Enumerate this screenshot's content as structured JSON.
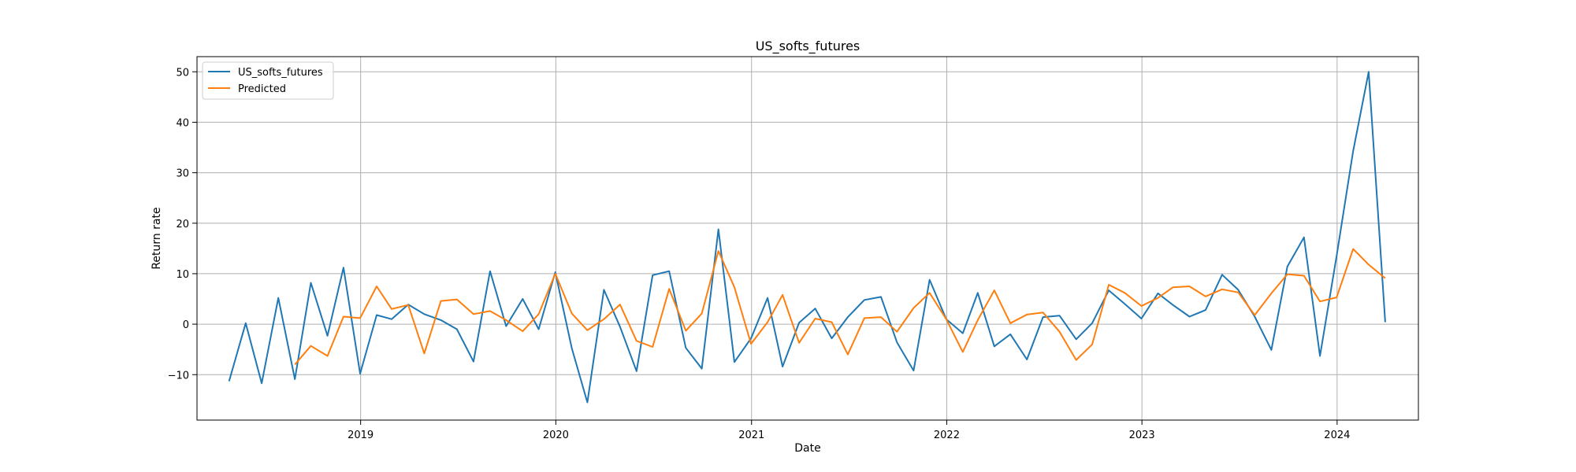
{
  "chart_data": {
    "type": "line",
    "title": "US_softs_futures",
    "xlabel": "Date",
    "ylabel": "Return rate",
    "xlim": [
      "2018-03-01",
      "2024-06-01"
    ],
    "ylim": [
      -19,
      53
    ],
    "x_ticks": [
      {
        "date": "2019-01-01",
        "label": "2019"
      },
      {
        "date": "2020-01-01",
        "label": "2020"
      },
      {
        "date": "2021-01-01",
        "label": "2021"
      },
      {
        "date": "2022-01-01",
        "label": "2022"
      },
      {
        "date": "2023-01-01",
        "label": "2023"
      },
      {
        "date": "2024-01-01",
        "label": "2024"
      }
    ],
    "y_ticks": [
      {
        "value": -10,
        "label": "−10"
      },
      {
        "value": 0,
        "label": "0"
      },
      {
        "value": 10,
        "label": "10"
      },
      {
        "value": 20,
        "label": "20"
      },
      {
        "value": 30,
        "label": "30"
      },
      {
        "value": 40,
        "label": "40"
      },
      {
        "value": 50,
        "label": "50"
      }
    ],
    "grid": true,
    "legend_position": "top-left",
    "series": [
      {
        "name": "US_softs_futures",
        "color": "#1f77b4",
        "x": [
          "2018-04-30",
          "2018-05-31",
          "2018-06-30",
          "2018-07-31",
          "2018-08-31",
          "2018-09-30",
          "2018-10-31",
          "2018-11-30",
          "2018-12-31",
          "2019-01-31",
          "2019-02-28",
          "2019-03-31",
          "2019-04-30",
          "2019-05-31",
          "2019-06-30",
          "2019-07-31",
          "2019-08-31",
          "2019-09-30",
          "2019-10-31",
          "2019-11-30",
          "2019-12-31",
          "2020-01-31",
          "2020-02-29",
          "2020-03-31",
          "2020-04-30",
          "2020-05-31",
          "2020-06-30",
          "2020-07-31",
          "2020-08-31",
          "2020-09-30",
          "2020-10-31",
          "2020-11-30",
          "2020-12-31",
          "2021-01-31",
          "2021-02-28",
          "2021-03-31",
          "2021-04-30",
          "2021-05-31",
          "2021-06-30",
          "2021-07-31",
          "2021-08-31",
          "2021-09-30",
          "2021-10-31",
          "2021-11-30",
          "2021-12-31",
          "2022-01-31",
          "2022-02-28",
          "2022-03-31",
          "2022-04-30",
          "2022-05-31",
          "2022-06-30",
          "2022-07-31",
          "2022-08-31",
          "2022-09-30",
          "2022-10-31",
          "2022-11-30",
          "2022-12-31",
          "2023-01-31",
          "2023-02-28",
          "2023-03-31",
          "2023-04-30",
          "2023-05-31",
          "2023-06-30",
          "2023-07-31",
          "2023-08-31",
          "2023-09-30",
          "2023-10-31",
          "2023-11-30",
          "2023-12-31",
          "2024-01-31",
          "2024-02-29",
          "2024-03-31"
        ],
        "y": [
          -11.3,
          0.2,
          -11.7,
          5.2,
          -10.9,
          8.2,
          -2.3,
          11.2,
          -9.8,
          1.8,
          1.0,
          3.9,
          2.0,
          0.8,
          -1.0,
          -7.4,
          10.5,
          -0.4,
          5.0,
          -1.0,
          10.3,
          -4.8,
          -15.5,
          6.8,
          -0.5,
          -9.3,
          9.7,
          10.5,
          -4.7,
          -8.8,
          18.8,
          -7.5,
          -2.8,
          5.2,
          -8.4,
          0.3,
          3.1,
          -2.8,
          1.4,
          4.8,
          5.4,
          -3.6,
          -9.2,
          8.8,
          1.0,
          -1.8,
          6.2,
          -4.4,
          -2.0,
          -7.0,
          1.4,
          1.7,
          -3.0,
          0.2,
          6.7,
          4.0,
          1.1,
          6.1,
          3.8,
          1.5,
          2.8,
          9.8,
          6.8,
          1.5,
          -5.1,
          11.4,
          17.2,
          -6.3,
          13.5,
          34.3,
          50.0,
          0.4
        ]
      },
      {
        "name": "Predicted",
        "color": "#ff7f0e",
        "x": [
          "2018-08-31",
          "2018-09-30",
          "2018-10-31",
          "2018-11-30",
          "2018-12-31",
          "2019-01-31",
          "2019-02-28",
          "2019-03-31",
          "2019-04-30",
          "2019-05-31",
          "2019-06-30",
          "2019-07-31",
          "2019-08-31",
          "2019-09-30",
          "2019-10-31",
          "2019-11-30",
          "2019-12-31",
          "2020-01-31",
          "2020-02-29",
          "2020-03-31",
          "2020-04-30",
          "2020-05-31",
          "2020-06-30",
          "2020-07-31",
          "2020-08-31",
          "2020-09-30",
          "2020-10-31",
          "2020-11-30",
          "2020-12-31",
          "2021-01-31",
          "2021-02-28",
          "2021-03-31",
          "2021-04-30",
          "2021-05-31",
          "2021-06-30",
          "2021-07-31",
          "2021-08-31",
          "2021-09-30",
          "2021-10-31",
          "2021-11-30",
          "2021-12-31",
          "2022-01-31",
          "2022-02-28",
          "2022-03-31",
          "2022-04-30",
          "2022-05-31",
          "2022-06-30",
          "2022-07-31",
          "2022-08-31",
          "2022-09-30",
          "2022-10-31",
          "2022-11-30",
          "2022-12-31",
          "2023-01-31",
          "2023-02-28",
          "2023-03-31",
          "2023-04-30",
          "2023-05-31",
          "2023-06-30",
          "2023-07-31",
          "2023-08-31",
          "2023-09-30",
          "2023-10-31",
          "2023-11-30",
          "2023-12-31",
          "2024-01-31",
          "2024-02-29",
          "2024-03-31"
        ],
        "y": [
          -8.0,
          -4.3,
          -6.3,
          1.5,
          1.2,
          7.5,
          3.0,
          3.8,
          -5.8,
          4.6,
          4.9,
          2.0,
          2.6,
          0.8,
          -1.4,
          2.0,
          10.0,
          2.1,
          -1.2,
          1.0,
          3.9,
          -3.3,
          -4.5,
          7.0,
          -1.3,
          2.1,
          14.5,
          7.3,
          -3.9,
          0.4,
          5.8,
          -3.7,
          1.1,
          0.4,
          -6.0,
          1.2,
          1.4,
          -1.5,
          3.2,
          6.2,
          1.0,
          -5.5,
          0.8,
          6.7,
          0.2,
          1.9,
          2.3,
          -1.5,
          -7.1,
          -4.0,
          7.8,
          6.2,
          3.6,
          5.2,
          7.3,
          7.5,
          5.5,
          6.9,
          6.3,
          1.8,
          6.1,
          9.9,
          9.6,
          4.5,
          5.3,
          14.9,
          11.8,
          9.1
        ]
      }
    ]
  }
}
